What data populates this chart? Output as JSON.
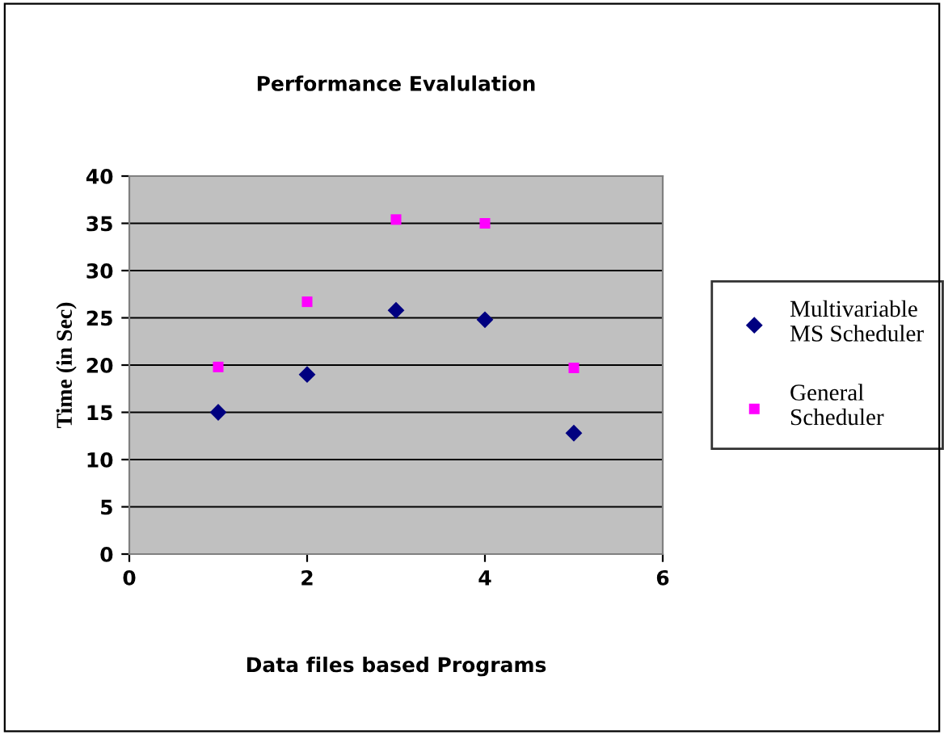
{
  "chart_data": {
    "type": "scatter",
    "title": "Performance Evalulation",
    "xlabel": "Data files based Programs",
    "ylabel": "Time (in Sec)",
    "xlim": [
      0,
      6
    ],
    "xticks": [
      0,
      2,
      4,
      6
    ],
    "ylim": [
      0,
      40
    ],
    "yticks": [
      0,
      5,
      10,
      15,
      20,
      25,
      30,
      35,
      40
    ],
    "grid": "y",
    "legend": "right",
    "series": [
      {
        "name": "Multivariable MS Scheduler",
        "color": "#000080",
        "marker": "diamond",
        "x": [
          1,
          2,
          3,
          4,
          5
        ],
        "values": [
          15,
          19,
          25.8,
          24.8,
          12.8
        ]
      },
      {
        "name": "General Scheduler",
        "color": "#ff00ff",
        "marker": "square",
        "x": [
          1,
          2,
          3,
          4,
          5
        ],
        "values": [
          19.8,
          26.7,
          35.4,
          35,
          19.7
        ]
      }
    ]
  }
}
